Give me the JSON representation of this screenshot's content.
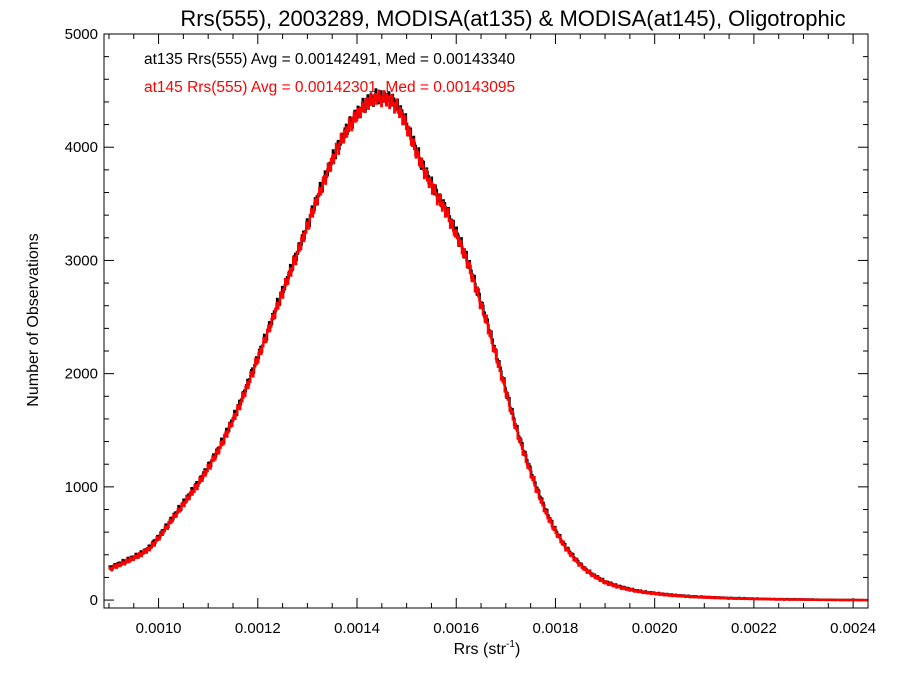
{
  "chart_data": {
    "type": "histogram-step",
    "title": "Rrs(555), 2003289, MODISA(at135) & MODISA(at145), Oligotrophic",
    "xlabel_base": "Rrs (str",
    "xlabel_sup": "-1",
    "xlabel_close": ")",
    "ylabel": "Number of Observations",
    "xlim": [
      0.00089,
      0.00243
    ],
    "ylim": [
      -70,
      5000
    ],
    "x_ticks": [
      0.001,
      0.0012,
      0.0014,
      0.0016,
      0.0018,
      0.002,
      0.0022,
      0.0024
    ],
    "x_tick_labels": [
      "0.0010",
      "0.0012",
      "0.0014",
      "0.0016",
      "0.0018",
      "0.0020",
      "0.0022",
      "0.0024"
    ],
    "y_ticks": [
      0,
      1000,
      2000,
      3000,
      4000,
      5000
    ],
    "y_tick_labels": [
      "0",
      "1000",
      "2000",
      "3000",
      "4000",
      "5000"
    ],
    "annotations": [
      {
        "text": "at135 Rrs(555) Avg = 0.00142491, Med = 0.00143340",
        "color": "#000000"
      },
      {
        "text": "at145 Rrs(555) Avg = 0.00142301, Med = 0.00143095",
        "color": "#ff0000"
      }
    ],
    "series": [
      {
        "color": "#000000",
        "points": [
          [
            0.0009,
            280
          ],
          [
            0.00092,
            320
          ],
          [
            0.00094,
            360
          ],
          [
            0.00096,
            400
          ],
          [
            0.00098,
            460
          ],
          [
            0.001,
            560
          ],
          [
            0.00102,
            680
          ],
          [
            0.00104,
            800
          ],
          [
            0.00106,
            920
          ],
          [
            0.00108,
            1040
          ],
          [
            0.0011,
            1180
          ],
          [
            0.00112,
            1330
          ],
          [
            0.00114,
            1510
          ],
          [
            0.00116,
            1700
          ],
          [
            0.00118,
            1920
          ],
          [
            0.0012,
            2150
          ],
          [
            0.00122,
            2380
          ],
          [
            0.00124,
            2620
          ],
          [
            0.00126,
            2850
          ],
          [
            0.00128,
            3080
          ],
          [
            0.0013,
            3320
          ],
          [
            0.00132,
            3560
          ],
          [
            0.00134,
            3790
          ],
          [
            0.00136,
            4000
          ],
          [
            0.00138,
            4170
          ],
          [
            0.0014,
            4300
          ],
          [
            0.00142,
            4400
          ],
          [
            0.00144,
            4450
          ],
          [
            0.00146,
            4440
          ],
          [
            0.00148,
            4380
          ],
          [
            0.0015,
            4200
          ],
          [
            0.00152,
            3960
          ],
          [
            0.00154,
            3760
          ],
          [
            0.00156,
            3590
          ],
          [
            0.00158,
            3440
          ],
          [
            0.0016,
            3240
          ],
          [
            0.00162,
            3030
          ],
          [
            0.00164,
            2760
          ],
          [
            0.00166,
            2480
          ],
          [
            0.00168,
            2170
          ],
          [
            0.0017,
            1850
          ],
          [
            0.00172,
            1530
          ],
          [
            0.00174,
            1260
          ],
          [
            0.00176,
            1010
          ],
          [
            0.00178,
            790
          ],
          [
            0.0018,
            610
          ],
          [
            0.00182,
            470
          ],
          [
            0.00184,
            360
          ],
          [
            0.00186,
            270
          ],
          [
            0.00188,
            210
          ],
          [
            0.0019,
            160
          ],
          [
            0.00192,
            130
          ],
          [
            0.00194,
            105
          ],
          [
            0.00196,
            85
          ],
          [
            0.00198,
            70
          ],
          [
            0.002,
            60
          ],
          [
            0.00202,
            50
          ],
          [
            0.00204,
            42
          ],
          [
            0.00206,
            36
          ],
          [
            0.00208,
            30
          ],
          [
            0.0021,
            26
          ],
          [
            0.00212,
            22
          ],
          [
            0.00214,
            19
          ],
          [
            0.00216,
            16
          ],
          [
            0.00218,
            14
          ],
          [
            0.0022,
            12
          ],
          [
            0.00222,
            10
          ],
          [
            0.00224,
            8
          ],
          [
            0.00226,
            7
          ],
          [
            0.00228,
            6
          ],
          [
            0.0023,
            5
          ],
          [
            0.00232,
            4
          ],
          [
            0.00234,
            3
          ],
          [
            0.00236,
            2
          ],
          [
            0.00238,
            1
          ],
          [
            0.0024,
            1
          ],
          [
            0.00243,
            0
          ]
        ]
      },
      {
        "color": "#ff0000",
        "points": [
          [
            0.0009,
            270
          ],
          [
            0.00092,
            310
          ],
          [
            0.00094,
            350
          ],
          [
            0.00096,
            395
          ],
          [
            0.00098,
            450
          ],
          [
            0.001,
            550
          ],
          [
            0.00102,
            670
          ],
          [
            0.00104,
            790
          ],
          [
            0.00106,
            910
          ],
          [
            0.00108,
            1030
          ],
          [
            0.0011,
            1170
          ],
          [
            0.00112,
            1320
          ],
          [
            0.00114,
            1500
          ],
          [
            0.00116,
            1690
          ],
          [
            0.00118,
            1910
          ],
          [
            0.0012,
            2140
          ],
          [
            0.00122,
            2370
          ],
          [
            0.00124,
            2610
          ],
          [
            0.00126,
            2840
          ],
          [
            0.00128,
            3070
          ],
          [
            0.0013,
            3310
          ],
          [
            0.00132,
            3550
          ],
          [
            0.00134,
            3780
          ],
          [
            0.00136,
            3990
          ],
          [
            0.00138,
            4160
          ],
          [
            0.0014,
            4290
          ],
          [
            0.00142,
            4390
          ],
          [
            0.00144,
            4440
          ],
          [
            0.00146,
            4420
          ],
          [
            0.00148,
            4360
          ],
          [
            0.0015,
            4180
          ],
          [
            0.00152,
            3940
          ],
          [
            0.00154,
            3740
          ],
          [
            0.00156,
            3570
          ],
          [
            0.00158,
            3420
          ],
          [
            0.0016,
            3220
          ],
          [
            0.00162,
            3010
          ],
          [
            0.00164,
            2740
          ],
          [
            0.00166,
            2460
          ],
          [
            0.00168,
            2150
          ],
          [
            0.0017,
            1830
          ],
          [
            0.00172,
            1510
          ],
          [
            0.00174,
            1240
          ],
          [
            0.00176,
            990
          ],
          [
            0.00178,
            770
          ],
          [
            0.0018,
            600
          ],
          [
            0.00182,
            460
          ],
          [
            0.00184,
            350
          ],
          [
            0.00186,
            265
          ],
          [
            0.00188,
            205
          ],
          [
            0.0019,
            155
          ],
          [
            0.00192,
            125
          ],
          [
            0.00194,
            100
          ],
          [
            0.00196,
            82
          ],
          [
            0.00198,
            68
          ],
          [
            0.002,
            58
          ],
          [
            0.00202,
            48
          ],
          [
            0.00204,
            40
          ],
          [
            0.00206,
            34
          ],
          [
            0.00208,
            29
          ],
          [
            0.0021,
            25
          ],
          [
            0.00212,
            21
          ],
          [
            0.00214,
            18
          ],
          [
            0.00216,
            15
          ],
          [
            0.00218,
            13
          ],
          [
            0.0022,
            11
          ],
          [
            0.00222,
            9
          ],
          [
            0.00224,
            7
          ],
          [
            0.00226,
            6
          ],
          [
            0.00228,
            5
          ],
          [
            0.0023,
            4
          ],
          [
            0.00232,
            3
          ],
          [
            0.00234,
            2
          ],
          [
            0.00236,
            2
          ],
          [
            0.00238,
            1
          ],
          [
            0.0024,
            1
          ],
          [
            0.00243,
            0
          ]
        ]
      }
    ]
  }
}
